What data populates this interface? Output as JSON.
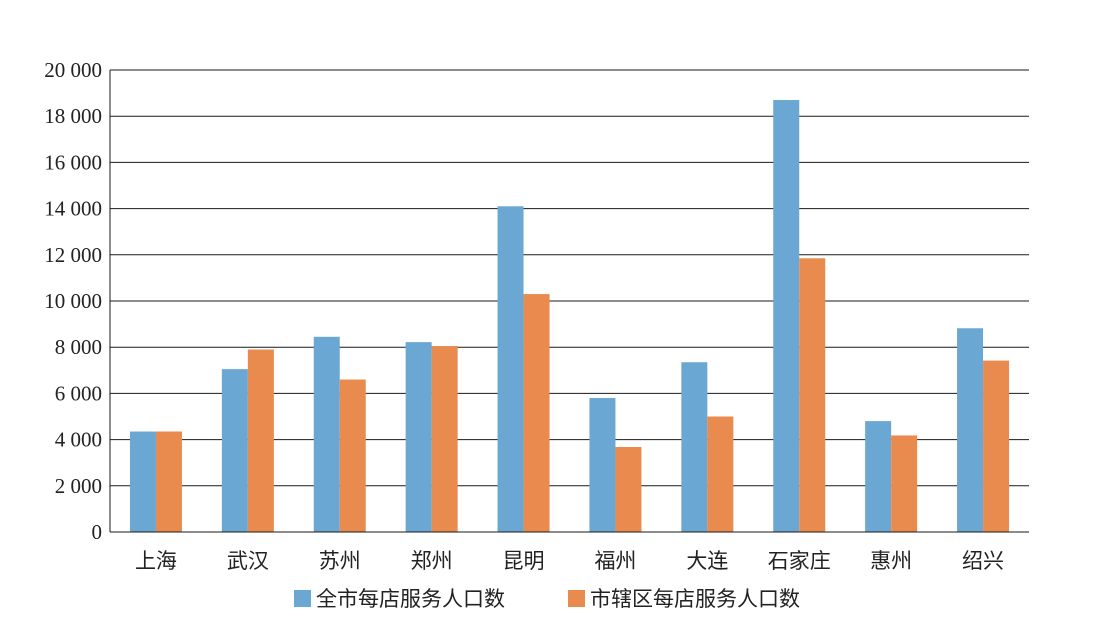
{
  "chart_data": {
    "type": "bar",
    "categories": [
      "上海",
      "武汉",
      "苏州",
      "郑州",
      "昆明",
      "福州",
      "大连",
      "石家庄",
      "惠州",
      "绍兴"
    ],
    "series": [
      {
        "name": "全市每店服务人口数",
        "color": "#6aa7d2",
        "values": [
          4350,
          7050,
          8450,
          8220,
          14100,
          5800,
          7350,
          18700,
          4800,
          8820
        ]
      },
      {
        "name": "市辖区每店服务人口数",
        "color": "#e98b4f",
        "values": [
          4350,
          7900,
          6600,
          8050,
          10300,
          3680,
          5000,
          11850,
          4180,
          7420
        ]
      }
    ],
    "ylim": [
      0,
      20000
    ],
    "yticks": [
      0,
      2000,
      4000,
      6000,
      8000,
      10000,
      12000,
      14000,
      16000,
      18000,
      20000
    ],
    "ytick_labels": [
      "0",
      "2 000",
      "4 000",
      "6 000",
      "8 000",
      "10 000",
      "12 000",
      "14 000",
      "16 000",
      "18 000",
      "20 000"
    ],
    "grid": true,
    "legend_position": "bottom"
  }
}
